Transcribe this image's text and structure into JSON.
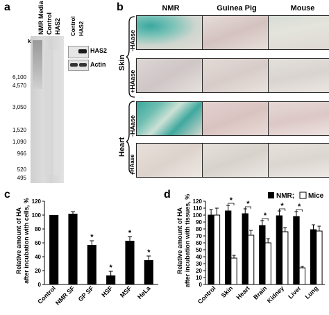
{
  "panels": {
    "a": {
      "letter": "a",
      "kda_label": "kDa",
      "gel_lanes": [
        "NMR Media",
        "Control",
        "HAS2"
      ],
      "marker_labels": [
        "6,100",
        "4,570",
        "3,050",
        "1,520",
        "1,090",
        "966",
        "520",
        "495"
      ],
      "blot_lanes": [
        "Control",
        "HAS2"
      ],
      "blot_bands": [
        "HAS2",
        "Actin"
      ]
    },
    "b": {
      "letter": "b",
      "columns": [
        "NMR",
        "Guinea Pig",
        "Mouse"
      ],
      "tissues": [
        "Skin",
        "Heart"
      ],
      "treatments": [
        "-HAase",
        "+HAase"
      ],
      "colors": {
        "stain_green": "#3aa8a0",
        "tissue_pink": "#d9c3c0",
        "background": "#e9e2dd"
      }
    },
    "c": {
      "letter": "c",
      "ylabel_line1": "Relative amount of HA",
      "ylabel_line2": "after incubation with cells, %"
    },
    "d": {
      "letter": "d",
      "ylabel_line1": "Relative amount of HA",
      "ylabel_line2": "after incubation with tissues, %",
      "legend_nmr": "NMR;",
      "legend_mice": "Mice"
    }
  },
  "chart_data": [
    {
      "id": "c",
      "type": "bar",
      "categories": [
        "Control",
        "NMR SF",
        "GP SF",
        "HSF",
        "MSF",
        "HeLa"
      ],
      "values": [
        100,
        102,
        57,
        13,
        63,
        35
      ],
      "errors": [
        0,
        3,
        6,
        6,
        6,
        6
      ],
      "significant": [
        false,
        false,
        true,
        true,
        true,
        true
      ],
      "ylim": [
        0,
        120
      ],
      "yticks": [
        0,
        20,
        40,
        60,
        80,
        100,
        120
      ],
      "ylabel": "Relative amount of HA after incubation with cells, %"
    },
    {
      "id": "d",
      "type": "bar",
      "categories": [
        "Control",
        "Skin",
        "Heart",
        "Brain",
        "Kidney",
        "Liver",
        "Lung"
      ],
      "series": [
        {
          "name": "NMR",
          "values": [
            100,
            106,
            102,
            85,
            99,
            98,
            79
          ],
          "errors": [
            8,
            8,
            7,
            7,
            7,
            7,
            7
          ],
          "color": "#000000"
        },
        {
          "name": "Mice",
          "values": [
            100,
            38,
            71,
            60,
            76,
            24,
            77
          ],
          "errors": [
            10,
            4,
            7,
            6,
            6,
            2,
            7
          ],
          "color": "#ffffff"
        }
      ],
      "significant": [
        false,
        true,
        true,
        true,
        true,
        true,
        false
      ],
      "ylim": [
        0,
        120
      ],
      "yticks": [
        0,
        10,
        20,
        30,
        40,
        50,
        60,
        70,
        80,
        90,
        100,
        110,
        120
      ],
      "ylabel": "Relative amount of HA after incubation with tissues, %",
      "legend": "top-right"
    }
  ]
}
